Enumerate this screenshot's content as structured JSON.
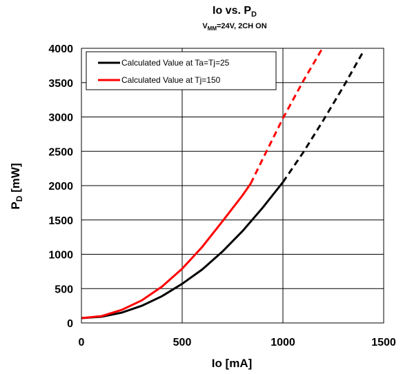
{
  "chart_data": {
    "type": "line",
    "title_main": "Io vs. P",
    "title_main_sub": "D",
    "title_sub_v": "V",
    "title_sub_vsub": "MM",
    "title_sub_rest": "=24V, 2CH ON",
    "xlabel": "Io [mA]",
    "ylabel_main": "P",
    "ylabel_sub": "D",
    "ylabel_rest": " [mW]",
    "xlim": [
      0,
      1500
    ],
    "ylim": [
      0,
      4000
    ],
    "xticks": [
      "0",
      "500",
      "1000",
      "1500"
    ],
    "xtick_values": [
      0,
      500,
      1000,
      1500
    ],
    "yticks": [
      "0",
      "500",
      "1000",
      "1500",
      "2000",
      "2500",
      "3000",
      "3500",
      "4000"
    ],
    "ytick_values": [
      0,
      500,
      1000,
      1500,
      2000,
      2500,
      3000,
      3500,
      4000
    ],
    "grid": true,
    "legend_placement": "top-left",
    "series": [
      {
        "name": "Calculated Value at Ta=Tj=25",
        "color": "#000000",
        "solid": {
          "x": [
            0,
            100,
            200,
            300,
            400,
            500,
            600,
            700,
            800,
            900,
            1000
          ],
          "y": [
            70,
            90,
            150,
            250,
            390,
            570,
            780,
            1040,
            1340,
            1680,
            2050
          ]
        },
        "dashed": {
          "x": [
            1000,
            1100,
            1200,
            1300,
            1400
          ],
          "y": [
            2050,
            2480,
            2950,
            3440,
            3960
          ]
        }
      },
      {
        "name": "Calculated Value at Tj=150",
        "color": "#ff0000",
        "solid": {
          "x": [
            0,
            100,
            200,
            300,
            400,
            500,
            600,
            700,
            800,
            840
          ],
          "y": [
            70,
            100,
            190,
            330,
            530,
            790,
            1110,
            1480,
            1860,
            2030
          ]
        },
        "dashed": {
          "x": [
            840,
            900,
            1000,
            1100,
            1200
          ],
          "y": [
            2030,
            2390,
            2980,
            3520,
            4020
          ]
        }
      }
    ]
  }
}
